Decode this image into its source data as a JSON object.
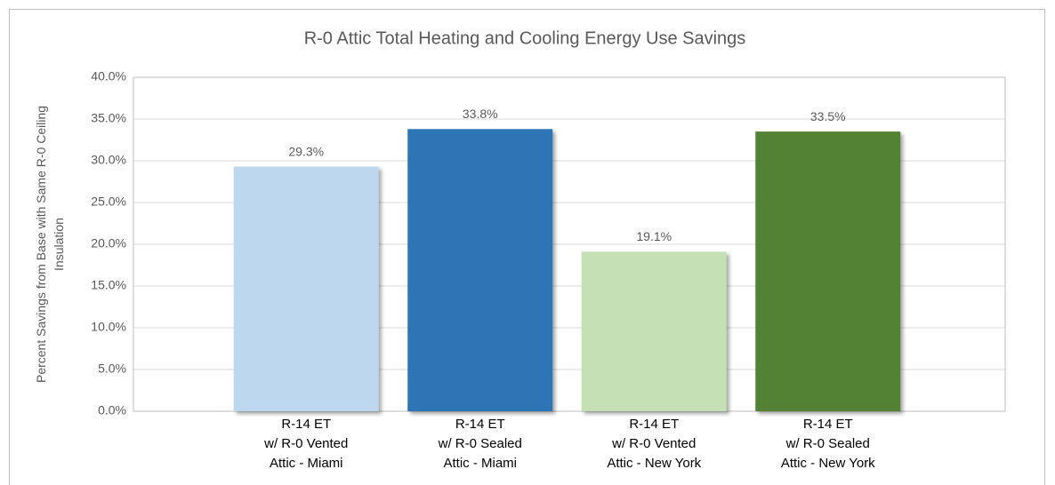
{
  "chart_data": {
    "type": "bar",
    "title": "R-0 Attic Total Heating and Cooling Energy Use Savings",
    "ylabel": [
      "Percent Savings from Base with Same R-0 Ceiling",
      "Insulation"
    ],
    "categories": [
      [
        "R-14 ET",
        "w/ R-0 Vented",
        "Attic - Miami"
      ],
      [
        "R-14 ET",
        "w/ R-0 Sealed",
        "Attic - Miami"
      ],
      [
        "R-14 ET",
        "w/ R-0 Vented",
        "Attic - New York"
      ],
      [
        "R-14 ET",
        "w/ R-0 Sealed",
        "Attic - New York"
      ]
    ],
    "values": [
      29.3,
      33.8,
      19.1,
      33.5
    ],
    "value_labels": [
      "29.3%",
      "33.8%",
      "19.1%",
      "33.5%"
    ],
    "colors": [
      "#bdd7ee",
      "#2e75b6",
      "#c5e0b4",
      "#548235"
    ],
    "ylim": [
      0,
      40
    ],
    "yticks": [
      {
        "value": 0,
        "label": "0.0%"
      },
      {
        "value": 5,
        "label": "5.0%"
      },
      {
        "value": 10,
        "label": "10.0%"
      },
      {
        "value": 15,
        "label": "15.0%"
      },
      {
        "value": 20,
        "label": "20.0%"
      },
      {
        "value": 25,
        "label": "25.0%"
      },
      {
        "value": 30,
        "label": "30.0%"
      },
      {
        "value": 35,
        "label": "35.0%"
      },
      {
        "value": 40,
        "label": "40.0%"
      }
    ],
    "grid": true
  }
}
